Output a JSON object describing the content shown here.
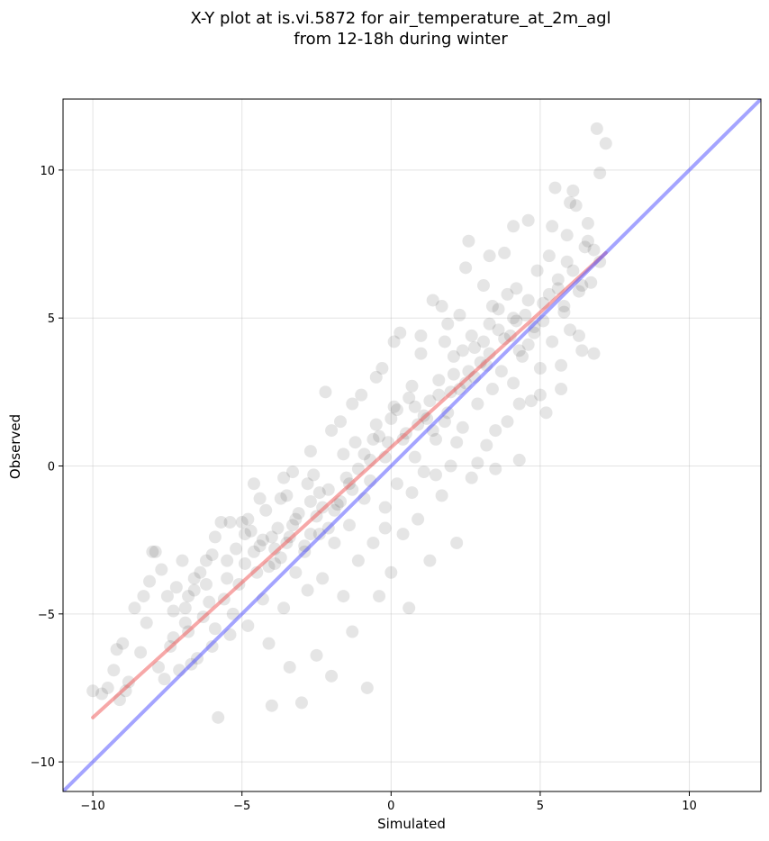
{
  "chart_data": {
    "type": "scatter",
    "title_lines": [
      "X-Y plot at is.vi.5872 for air_temperature_at_2m_agl",
      "from 12-18h during winter"
    ],
    "xlabel": "Simulated",
    "ylabel": "Observed",
    "xlim": [
      -11,
      12.4
    ],
    "ylim": [
      -11,
      12.4
    ],
    "xticks": [
      -10,
      -5,
      0,
      5,
      10
    ],
    "yticks": [
      -10,
      -5,
      0,
      5,
      10
    ],
    "xtick_labels": [
      "−10",
      "−5",
      "0",
      "5",
      "10"
    ],
    "ytick_labels": [
      "−10",
      "−5",
      "0",
      "5",
      "10"
    ],
    "grid": true,
    "legend": "none",
    "point_color": "#000000",
    "point_alpha": 0.1,
    "series": [
      {
        "type": "scatter",
        "points": [
          [
            -10,
            -7.6
          ],
          [
            -9.5,
            -7.5
          ],
          [
            -9.2,
            -6.2
          ],
          [
            -9.1,
            -7.9
          ],
          [
            -9,
            -6
          ],
          [
            -8.8,
            -7.3
          ],
          [
            -8.6,
            -4.8
          ],
          [
            -8.3,
            -4.4
          ],
          [
            -8.1,
            -3.9
          ],
          [
            -8,
            -2.9
          ],
          [
            -7.8,
            -6.8
          ],
          [
            -7.7,
            -3.5
          ],
          [
            -7.6,
            -7.2
          ],
          [
            -7.5,
            -4.4
          ],
          [
            -7.3,
            -5.8
          ],
          [
            -7.2,
            -4.1
          ],
          [
            -7.1,
            -6.9
          ],
          [
            -7,
            -3.2
          ],
          [
            -6.9,
            -4.8
          ],
          [
            -6.8,
            -5.6
          ],
          [
            -6.7,
            -6.7
          ],
          [
            -6.6,
            -4.2
          ],
          [
            -6.4,
            -3.6
          ],
          [
            -6.3,
            -5.1
          ],
          [
            -6.2,
            -3.2
          ],
          [
            -6.1,
            -4.6
          ],
          [
            -6,
            -6.1
          ],
          [
            -5.9,
            -2.4
          ],
          [
            -5.8,
            -8.5
          ],
          [
            -5.7,
            -1.9
          ],
          [
            -5.6,
            -4.5
          ],
          [
            -5.5,
            -3.2
          ],
          [
            -5.4,
            -5.7
          ],
          [
            -5.2,
            -2.8
          ],
          [
            -5.1,
            -4
          ],
          [
            -5,
            -1.9
          ],
          [
            -4.9,
            -3.3
          ],
          [
            -4.8,
            -5.4
          ],
          [
            -4.7,
            -2.2
          ],
          [
            -4.6,
            -0.6
          ],
          [
            -4.4,
            -2.7
          ],
          [
            -4.3,
            -4.5
          ],
          [
            -4.2,
            -1.5
          ],
          [
            -4.1,
            -6
          ],
          [
            -4,
            -8.1
          ],
          [
            -3.9,
            -3.3
          ],
          [
            -3.8,
            -2.1
          ],
          [
            -3.7,
            -1.1
          ],
          [
            -3.6,
            -4.8
          ],
          [
            -3.5,
            -2.6
          ],
          [
            -3.4,
            -6.8
          ],
          [
            -3.3,
            -0.2
          ],
          [
            -3.2,
            -3.6
          ],
          [
            -3.1,
            -1.6
          ],
          [
            -3,
            -8
          ],
          [
            -2.9,
            -2.9
          ],
          [
            -2.8,
            -4.2
          ],
          [
            -2.7,
            -1.2
          ],
          [
            -2.6,
            -0.3
          ],
          [
            -2.5,
            -6.4
          ],
          [
            -2.4,
            -2.3
          ],
          [
            -2.3,
            -3.8
          ],
          [
            -2.2,
            2.5
          ],
          [
            -2.1,
            -0.8
          ],
          [
            -2,
            -7.1
          ],
          [
            -1.9,
            -2.6
          ],
          [
            -1.8,
            -1.3
          ],
          [
            -1.7,
            1.5
          ],
          [
            -1.6,
            -4.4
          ],
          [
            -1.5,
            -0.4
          ],
          [
            -1.4,
            -2
          ],
          [
            -1.3,
            -5.6
          ],
          [
            -1.2,
            0.8
          ],
          [
            -1.1,
            -3.2
          ],
          [
            -1,
            2.4
          ],
          [
            -0.9,
            -1.1
          ],
          [
            -0.8,
            -7.5
          ],
          [
            -0.7,
            0.2
          ],
          [
            -0.6,
            -2.6
          ],
          [
            -0.5,
            1.4
          ],
          [
            -0.4,
            -4.4
          ],
          [
            -0.3,
            3.3
          ],
          [
            -0.2,
            -1.4
          ],
          [
            -0.1,
            0.8
          ],
          [
            0,
            -3.6
          ],
          [
            0.1,
            2
          ],
          [
            0.2,
            -0.6
          ],
          [
            0.3,
            4.5
          ],
          [
            0.4,
            -2.3
          ],
          [
            0.5,
            1.1
          ],
          [
            0.6,
            -4.8
          ],
          [
            0.7,
            2.7
          ],
          [
            0.8,
            0.3
          ],
          [
            0.9,
            -1.8
          ],
          [
            1,
            3.8
          ],
          [
            1.1,
            -0.2
          ],
          [
            1.2,
            1.6
          ],
          [
            1.3,
            -3.2
          ],
          [
            1.4,
            5.6
          ],
          [
            1.5,
            0.9
          ],
          [
            1.6,
            2.4
          ],
          [
            1.7,
            -1
          ],
          [
            1.8,
            4.2
          ],
          [
            1.9,
            1.8
          ],
          [
            2,
            0
          ],
          [
            2.1,
            3.1
          ],
          [
            2.2,
            -2.6
          ],
          [
            2.3,
            5.1
          ],
          [
            2.4,
            1.3
          ],
          [
            2.5,
            2.8
          ],
          [
            2.6,
            7.6
          ],
          [
            2.7,
            -0.4
          ],
          [
            2.8,
            4
          ],
          [
            2.9,
            2.1
          ],
          [
            3,
            3.5
          ],
          [
            3.1,
            6.1
          ],
          [
            3.2,
            0.7
          ],
          [
            3.3,
            4.8
          ],
          [
            3.4,
            2.6
          ],
          [
            3.5,
            -0.1
          ],
          [
            3.6,
            5.3
          ],
          [
            3.7,
            3.2
          ],
          [
            3.8,
            7.2
          ],
          [
            3.9,
            1.5
          ],
          [
            4,
            4.4
          ],
          [
            4.1,
            2.8
          ],
          [
            4.2,
            6
          ],
          [
            4.3,
            0.2
          ],
          [
            4.4,
            3.7
          ],
          [
            4.5,
            5.1
          ],
          [
            4.6,
            8.3
          ],
          [
            4.7,
            2.2
          ],
          [
            4.8,
            4.7
          ],
          [
            4.9,
            6.6
          ],
          [
            5,
            3.3
          ],
          [
            5.1,
            5.5
          ],
          [
            5.2,
            1.8
          ],
          [
            5.3,
            7.1
          ],
          [
            5.4,
            4.2
          ],
          [
            5.5,
            9.4
          ],
          [
            5.6,
            6
          ],
          [
            5.7,
            2.6
          ],
          [
            5.8,
            5.2
          ],
          [
            5.9,
            7.8
          ],
          [
            6,
            4.6
          ],
          [
            6.1,
            6.6
          ],
          [
            6.2,
            8.8
          ],
          [
            6.3,
            5.9
          ],
          [
            6.4,
            3.9
          ],
          [
            6.5,
            7.4
          ],
          [
            6.6,
            8.2
          ],
          [
            6.7,
            6.2
          ],
          [
            6.8,
            3.8
          ],
          [
            6.9,
            11.4
          ],
          [
            7,
            9.9
          ],
          [
            7.2,
            10.9
          ],
          [
            -9.3,
            -6.9
          ],
          [
            -8.9,
            -7.6
          ],
          [
            -8.4,
            -6.3
          ],
          [
            -7.9,
            -2.9
          ],
          [
            -7.4,
            -6.1
          ],
          [
            -6.9,
            -5.3
          ],
          [
            -6.5,
            -6.5
          ],
          [
            -5.9,
            -5.5
          ],
          [
            -5.3,
            -5
          ],
          [
            -4.6,
            -2.9
          ],
          [
            -4.3,
            -2.5
          ],
          [
            -3.9,
            -2.8
          ],
          [
            -3.5,
            -1
          ],
          [
            -3.2,
            -1.8
          ],
          [
            -2.7,
            -2.3
          ],
          [
            -2.4,
            -0.9
          ],
          [
            -1.9,
            -1.5
          ],
          [
            -1.4,
            -0.6
          ],
          [
            -0.9,
            0.4
          ],
          [
            -0.4,
            1
          ],
          [
            0.2,
            1.9
          ],
          [
            0.6,
            2.3
          ],
          [
            1.1,
            1.7
          ],
          [
            1.6,
            2.9
          ],
          [
            2.1,
            3.7
          ],
          [
            2.6,
            3.2
          ],
          [
            3.1,
            4.2
          ],
          [
            3.6,
            4.6
          ],
          [
            4.1,
            5
          ],
          [
            4.6,
            5.6
          ],
          [
            5.1,
            4.9
          ],
          [
            5.6,
            6.3
          ],
          [
            -4.8,
            -1.8
          ],
          [
            -4.5,
            -3.6
          ],
          [
            -4,
            -2.4
          ],
          [
            -3.7,
            -3.1
          ],
          [
            -3.3,
            -2
          ],
          [
            -2.9,
            -2.7
          ],
          [
            -2.5,
            -1.7
          ],
          [
            -2.1,
            -2.1
          ],
          [
            -1.7,
            -1.2
          ],
          [
            -1.3,
            -0.8
          ],
          [
            -0.7,
            -0.5
          ],
          [
            -0.2,
            0.3
          ],
          [
            0.4,
            0.9
          ],
          [
            0.9,
            1.4
          ],
          [
            1.3,
            2.2
          ],
          [
            1.8,
            1.5
          ],
          [
            2.3,
            2.6
          ],
          [
            2.8,
            3
          ],
          [
            3.3,
            3.8
          ],
          [
            3.8,
            4.3
          ],
          [
            4.3,
            3.9
          ],
          [
            4.8,
            4.5
          ],
          [
            5.3,
            5.8
          ],
          [
            5.8,
            5.4
          ],
          [
            3.4,
            5.4
          ],
          [
            3.9,
            5.8
          ],
          [
            4.2,
            4.9
          ],
          [
            4.6,
            4.1
          ],
          [
            3.2,
            3.4
          ],
          [
            2.7,
            4.4
          ],
          [
            2.4,
            3.9
          ],
          [
            2,
            2.5
          ],
          [
            1.4,
            1.2
          ],
          [
            0.8,
            2
          ],
          [
            0,
            1.6
          ],
          [
            -0.6,
            0.9
          ],
          [
            -1.1,
            -0.1
          ],
          [
            -1.6,
            0.4
          ],
          [
            -2.3,
            -1.4
          ],
          [
            -2.8,
            -0.6
          ],
          [
            -3.4,
            -2.4
          ],
          [
            -4.1,
            -3.4
          ],
          [
            -4.9,
            -2.3
          ],
          [
            -5.5,
            -3.8
          ],
          [
            -6.2,
            -4
          ],
          [
            -6.8,
            -4.4
          ],
          [
            -7.3,
            -4.9
          ],
          [
            -8.2,
            -5.3
          ],
          [
            -9.7,
            -7.7
          ],
          [
            -0.2,
            -2.1
          ],
          [
            0.7,
            -0.9
          ],
          [
            1.5,
            -0.3
          ],
          [
            2.2,
            0.8
          ],
          [
            2.9,
            0.1
          ],
          [
            3.5,
            1.2
          ],
          [
            4.3,
            2.1
          ],
          [
            5,
            2.4
          ],
          [
            5.7,
            3.4
          ],
          [
            6.3,
            4.4
          ],
          [
            1.9,
            4.8
          ],
          [
            1,
            4.4
          ],
          [
            0.1,
            4.2
          ],
          [
            -0.5,
            3
          ],
          [
            -1.3,
            2.1
          ],
          [
            -2,
            1.2
          ],
          [
            -2.7,
            0.5
          ],
          [
            -3.6,
            -0.4
          ],
          [
            -4.4,
            -1.1
          ],
          [
            -5.4,
            -1.9
          ],
          [
            -6,
            -3
          ],
          [
            -6.6,
            -3.8
          ],
          [
            5.4,
            8.1
          ],
          [
            6,
            8.9
          ],
          [
            6.6,
            7.6
          ],
          [
            4.1,
            8.1
          ],
          [
            3.3,
            7.1
          ],
          [
            2.5,
            6.7
          ],
          [
            1.7,
            5.4
          ],
          [
            6.1,
            9.3
          ],
          [
            5.9,
            6.9
          ],
          [
            6.4,
            6.1
          ],
          [
            6.8,
            7.3
          ],
          [
            7,
            6.9
          ]
        ]
      },
      {
        "type": "line",
        "color": "#f06060",
        "points": [
          [
            -10,
            -8.5
          ],
          [
            7.2,
            7.2
          ]
        ]
      },
      {
        "type": "line",
        "color": "#5a5aff",
        "points": [
          [
            -11,
            -11
          ],
          [
            12.4,
            12.4
          ]
        ]
      }
    ]
  }
}
